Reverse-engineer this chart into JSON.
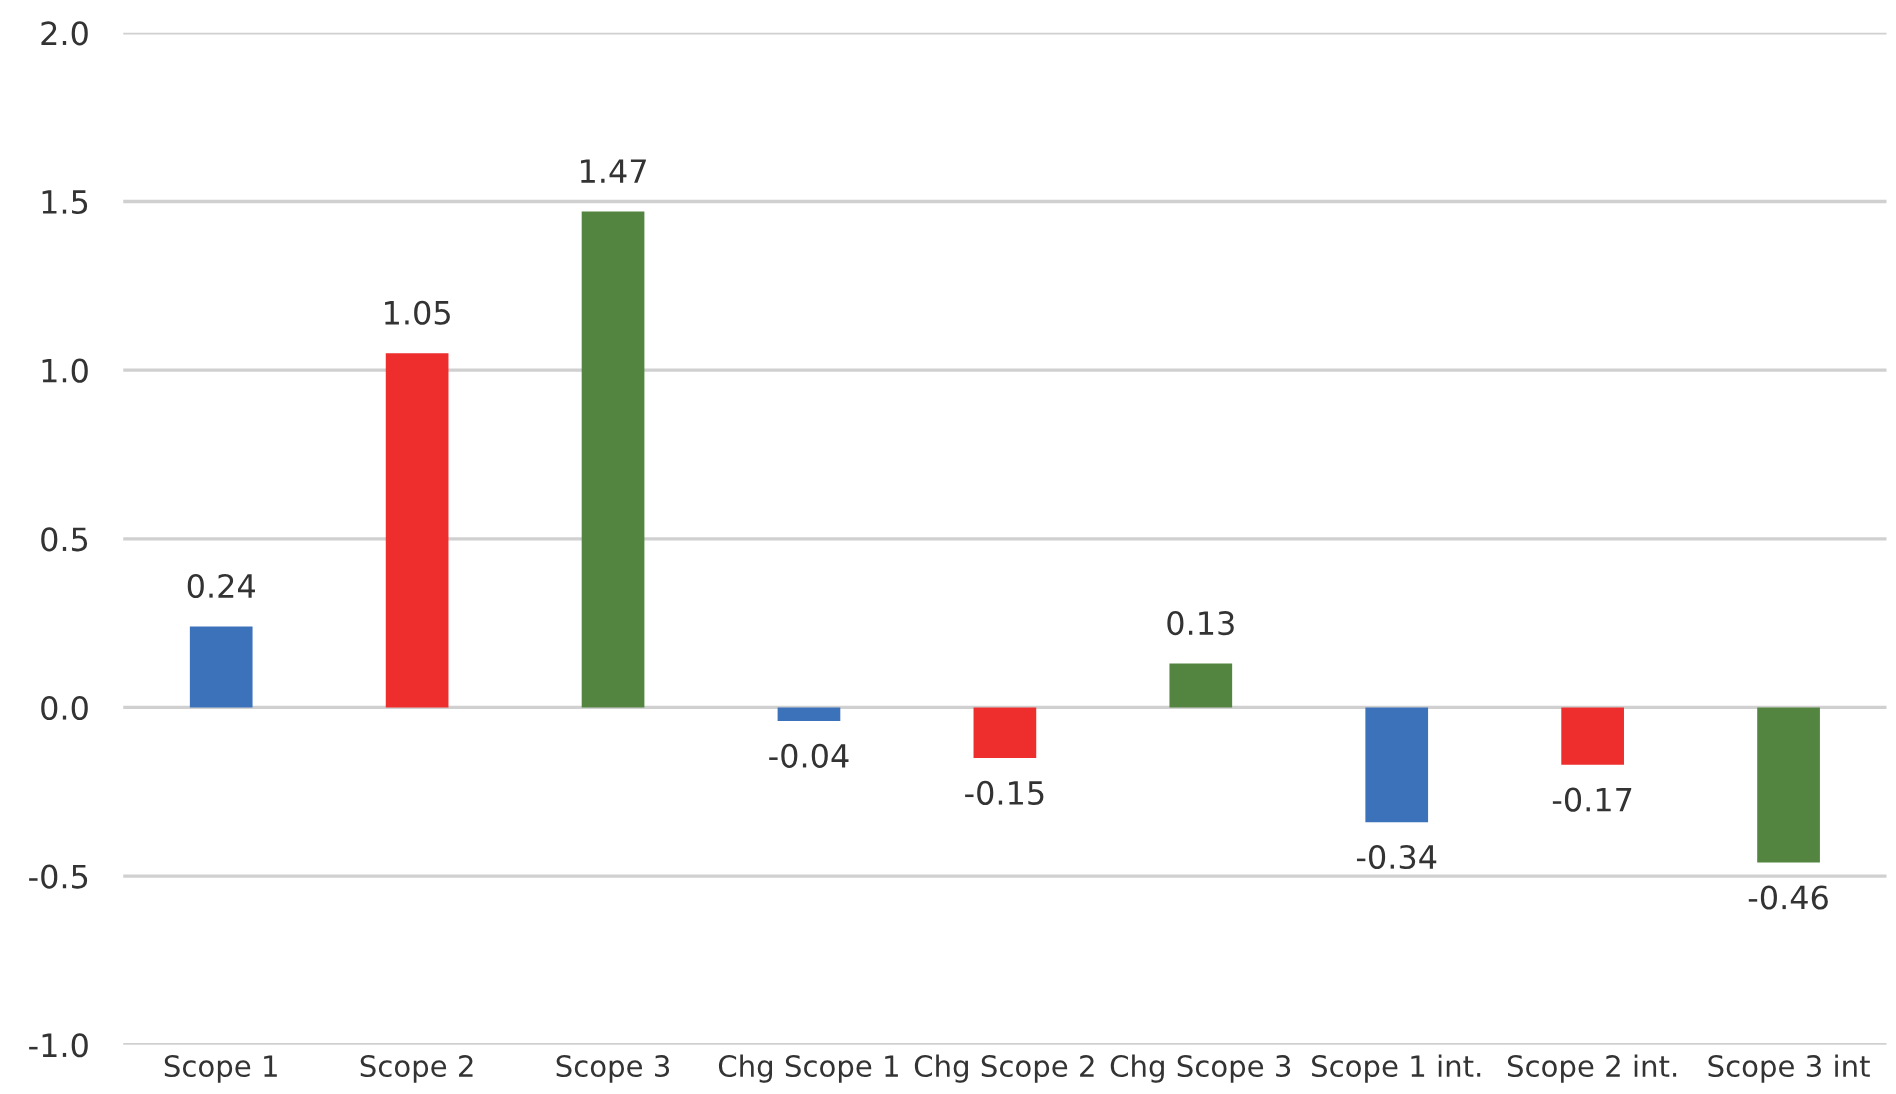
{
  "chart_data": {
    "type": "bar",
    "categories": [
      "Scope 1",
      "Scope 2",
      "Scope 3",
      "Chg Scope 1",
      "Chg Scope 2",
      "Chg Scope 3",
      "Scope 1 int.",
      "Scope 2 int.",
      "Scope 3 int"
    ],
    "values": [
      0.24,
      1.05,
      1.47,
      -0.04,
      -0.15,
      0.13,
      -0.34,
      -0.17,
      -0.46
    ],
    "colors": [
      "#3c72b9",
      "#ee2d2d",
      "#538440",
      "#3c72b9",
      "#ee2d2d",
      "#538440",
      "#3c72b9",
      "#ee2d2d",
      "#538440"
    ],
    "ylim": [
      -1.0,
      2.0
    ],
    "yticks": [
      {
        "value": -1,
        "label": "-1.0"
      },
      -0.5,
      {
        "value": 0,
        "label": "0.0"
      },
      0.5,
      {
        "value": 1,
        "label": "1.0"
      },
      1.5,
      {
        "value": 2,
        "label": "2.0"
      }
    ],
    "grid": "y",
    "data_labels": true
  }
}
